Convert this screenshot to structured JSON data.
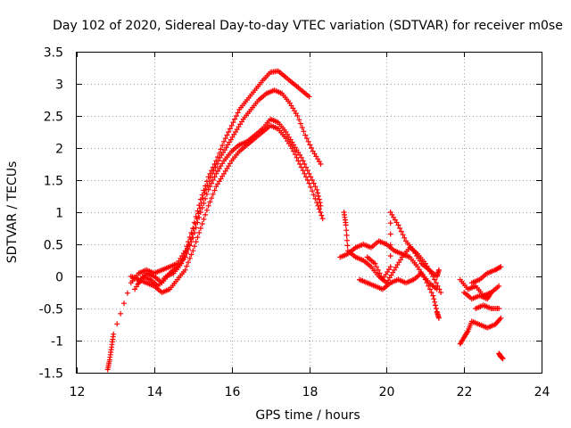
{
  "chart_data": {
    "type": "scatter",
    "title": "Day 102 of 2020, Sidereal Day-to-day VTEC variation (SDTVAR) for receiver m0se",
    "xlabel": "GPS time / hours",
    "ylabel": "SDTVAR / TECUs",
    "xlim": [
      12,
      24
    ],
    "ylim": [
      -1.5,
      3.5
    ],
    "x_ticks": [
      "12",
      "14",
      "16",
      "18",
      "20",
      "22",
      "24"
    ],
    "y_ticks": [
      "3.5",
      "3",
      "2.5",
      "2",
      "1.5",
      "1",
      "0.5",
      "0",
      "-0.5",
      "-1",
      "-1.5"
    ],
    "grid": true,
    "marker": "plus",
    "color": "#ff0000",
    "series": [
      {
        "name": "trace-1",
        "points": [
          [
            12.8,
            -1.45
          ],
          [
            12.85,
            -1.3
          ],
          [
            12.9,
            -1.1
          ],
          [
            12.95,
            -0.9
          ],
          [
            13.4,
            -0.1
          ],
          [
            13.6,
            0.05
          ],
          [
            13.8,
            0.1
          ],
          [
            14.0,
            0.05
          ],
          [
            14.2,
            0.1
          ],
          [
            14.4,
            0.15
          ],
          [
            14.6,
            0.2
          ],
          [
            14.8,
            0.4
          ],
          [
            15.0,
            0.75
          ],
          [
            15.2,
            1.2
          ],
          [
            15.4,
            1.55
          ],
          [
            15.6,
            1.8
          ],
          [
            15.8,
            2.1
          ],
          [
            16.0,
            2.35
          ],
          [
            16.2,
            2.6
          ],
          [
            16.4,
            2.75
          ],
          [
            16.6,
            2.9
          ],
          [
            16.8,
            3.05
          ],
          [
            17.0,
            3.18
          ],
          [
            17.2,
            3.2
          ],
          [
            17.4,
            3.1
          ],
          [
            17.6,
            3.0
          ],
          [
            17.8,
            2.9
          ],
          [
            18.0,
            2.8
          ]
        ]
      },
      {
        "name": "trace-2",
        "points": [
          [
            13.5,
            -0.2
          ],
          [
            13.7,
            0.0
          ],
          [
            13.9,
            -0.05
          ],
          [
            14.1,
            -0.15
          ],
          [
            14.3,
            0.0
          ],
          [
            14.5,
            0.05
          ],
          [
            14.7,
            0.2
          ],
          [
            14.9,
            0.5
          ],
          [
            15.1,
            0.9
          ],
          [
            15.3,
            1.3
          ],
          [
            15.5,
            1.6
          ],
          [
            15.7,
            1.85
          ],
          [
            15.9,
            2.05
          ],
          [
            16.1,
            2.25
          ],
          [
            16.3,
            2.45
          ],
          [
            16.5,
            2.6
          ],
          [
            16.7,
            2.75
          ],
          [
            16.9,
            2.85
          ],
          [
            17.1,
            2.9
          ],
          [
            17.3,
            2.85
          ],
          [
            17.5,
            2.7
          ],
          [
            17.7,
            2.5
          ],
          [
            17.9,
            2.2
          ],
          [
            18.1,
            1.95
          ],
          [
            18.3,
            1.75
          ]
        ]
      },
      {
        "name": "trace-3",
        "points": [
          [
            13.4,
            0.0
          ],
          [
            13.6,
            -0.05
          ],
          [
            13.8,
            -0.1
          ],
          [
            14.0,
            -0.15
          ],
          [
            14.2,
            -0.25
          ],
          [
            14.4,
            -0.2
          ],
          [
            14.6,
            -0.05
          ],
          [
            14.8,
            0.1
          ],
          [
            15.0,
            0.4
          ],
          [
            15.2,
            0.75
          ],
          [
            15.4,
            1.1
          ],
          [
            15.6,
            1.4
          ],
          [
            15.8,
            1.6
          ],
          [
            16.0,
            1.8
          ],
          [
            16.2,
            1.95
          ],
          [
            16.4,
            2.05
          ],
          [
            16.6,
            2.15
          ],
          [
            16.8,
            2.25
          ],
          [
            17.0,
            2.35
          ],
          [
            17.2,
            2.3
          ],
          [
            17.4,
            2.15
          ],
          [
            17.6,
            1.95
          ],
          [
            17.8,
            1.7
          ],
          [
            18.0,
            1.45
          ],
          [
            18.2,
            1.15
          ],
          [
            18.35,
            0.9
          ]
        ]
      },
      {
        "name": "trace-4",
        "points": [
          [
            13.6,
            -0.1
          ],
          [
            13.8,
            0.05
          ],
          [
            14.0,
            0.0
          ],
          [
            14.2,
            -0.1
          ],
          [
            14.4,
            0.05
          ],
          [
            14.6,
            0.15
          ],
          [
            14.8,
            0.3
          ],
          [
            15.0,
            0.6
          ],
          [
            15.2,
            1.0
          ],
          [
            15.4,
            1.35
          ],
          [
            15.6,
            1.6
          ],
          [
            15.8,
            1.8
          ],
          [
            16.0,
            1.95
          ],
          [
            16.2,
            2.05
          ],
          [
            16.4,
            2.1
          ],
          [
            16.6,
            2.2
          ],
          [
            16.8,
            2.3
          ],
          [
            17.0,
            2.45
          ],
          [
            17.2,
            2.4
          ],
          [
            17.4,
            2.25
          ],
          [
            17.6,
            2.05
          ],
          [
            17.8,
            1.85
          ],
          [
            18.0,
            1.6
          ],
          [
            18.2,
            1.35
          ],
          [
            18.3,
            1.1
          ]
        ]
      },
      {
        "name": "trace-5",
        "points": [
          [
            18.9,
            1.0
          ],
          [
            18.95,
            0.8
          ],
          [
            19.0,
            0.4
          ],
          [
            19.2,
            0.3
          ],
          [
            19.4,
            0.25
          ],
          [
            19.6,
            0.15
          ],
          [
            19.8,
            0.0
          ],
          [
            20.0,
            -0.1
          ],
          [
            20.2,
            0.1
          ],
          [
            20.4,
            0.3
          ],
          [
            20.6,
            0.45
          ],
          [
            20.8,
            0.35
          ],
          [
            21.0,
            0.2
          ],
          [
            21.2,
            0.0
          ],
          [
            21.4,
            -0.25
          ]
        ]
      },
      {
        "name": "trace-6",
        "points": [
          [
            18.8,
            0.3
          ],
          [
            19.0,
            0.35
          ],
          [
            19.2,
            0.45
          ],
          [
            19.4,
            0.5
          ],
          [
            19.6,
            0.45
          ],
          [
            19.8,
            0.55
          ],
          [
            20.0,
            0.5
          ],
          [
            20.2,
            0.4
          ],
          [
            20.4,
            0.35
          ],
          [
            20.6,
            0.3
          ],
          [
            20.8,
            0.15
          ],
          [
            21.0,
            -0.05
          ],
          [
            21.2,
            -0.3
          ],
          [
            21.3,
            -0.55
          ],
          [
            21.35,
            -0.65
          ]
        ]
      },
      {
        "name": "trace-7",
        "points": [
          [
            19.5,
            0.3
          ],
          [
            19.7,
            0.2
          ],
          [
            19.9,
            -0.05
          ],
          [
            20.1,
            0.15
          ],
          [
            20.1,
            1.0
          ],
          [
            20.3,
            0.8
          ],
          [
            20.5,
            0.55
          ],
          [
            20.7,
            0.4
          ],
          [
            20.9,
            0.2
          ],
          [
            21.1,
            0.1
          ],
          [
            21.3,
            0.0
          ],
          [
            21.35,
            0.1
          ]
        ]
      },
      {
        "name": "trace-8",
        "points": [
          [
            19.3,
            -0.05
          ],
          [
            19.5,
            -0.1
          ],
          [
            19.7,
            -0.15
          ],
          [
            19.9,
            -0.2
          ],
          [
            20.1,
            -0.1
          ],
          [
            20.3,
            -0.05
          ],
          [
            20.5,
            -0.1
          ],
          [
            20.7,
            -0.05
          ],
          [
            20.9,
            0.05
          ],
          [
            21.1,
            -0.1
          ],
          [
            21.3,
            -0.2
          ]
        ]
      },
      {
        "name": "trace-9",
        "points": [
          [
            21.9,
            -0.05
          ],
          [
            22.1,
            -0.2
          ],
          [
            22.3,
            -0.15
          ],
          [
            22.5,
            -0.3
          ],
          [
            22.7,
            -0.25
          ],
          [
            22.9,
            -0.15
          ],
          [
            22.0,
            -0.25
          ],
          [
            22.2,
            -0.35
          ],
          [
            22.4,
            -0.3
          ],
          [
            22.6,
            -0.35
          ],
          [
            22.7,
            -0.25
          ]
        ]
      },
      {
        "name": "trace-10",
        "points": [
          [
            22.2,
            -0.1
          ],
          [
            22.4,
            -0.05
          ],
          [
            22.6,
            0.05
          ],
          [
            22.8,
            0.1
          ],
          [
            22.95,
            0.15
          ]
        ]
      },
      {
        "name": "trace-11",
        "points": [
          [
            21.9,
            -1.05
          ],
          [
            22.0,
            -0.95
          ],
          [
            22.1,
            -0.85
          ],
          [
            22.2,
            -0.7
          ],
          [
            22.4,
            -0.75
          ],
          [
            22.6,
            -0.8
          ],
          [
            22.8,
            -0.75
          ],
          [
            22.95,
            -0.65
          ],
          [
            22.3,
            -0.5
          ],
          [
            22.5,
            -0.45
          ],
          [
            22.7,
            -0.5
          ],
          [
            22.9,
            -0.5
          ]
        ]
      },
      {
        "name": "trace-12",
        "points": [
          [
            22.9,
            -1.2
          ],
          [
            22.95,
            -1.25
          ],
          [
            23.0,
            -1.28
          ]
        ]
      }
    ]
  }
}
